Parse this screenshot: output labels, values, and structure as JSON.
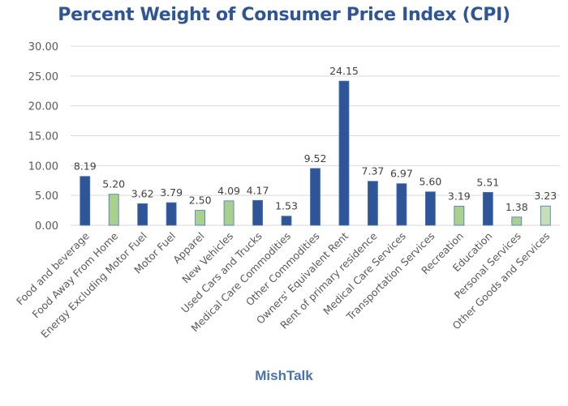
{
  "footer": "MishTalk",
  "chart_data": {
    "type": "bar",
    "title": "Percent Weight of Consumer Price Index (CPI)",
    "xlabel": "",
    "ylabel": "",
    "ylim": [
      0,
      30
    ],
    "yticks": [
      "0.00",
      "5.00",
      "10.00",
      "15.00",
      "20.00",
      "25.00",
      "30.00"
    ],
    "ytick_values": [
      0,
      5,
      10,
      15,
      20,
      25,
      30
    ],
    "grid": true,
    "legend": "none",
    "categories": [
      "Food and beverage",
      "Food Away From Home",
      "Energy Excluding Motor Fuel",
      "Motor Fuel",
      "Apparel",
      "New Vehicles",
      "Used Cars and Trucks",
      "Medical Care Commodities",
      "Other Commodities",
      "Owners' Equivalent Rent",
      "Rent of primary residence",
      "Medical Care Services",
      "Transportation Services",
      "Recreation",
      "Education",
      "Personal Services",
      "Other Goods and Services"
    ],
    "values": [
      8.19,
      5.2,
      3.62,
      3.79,
      2.5,
      4.09,
      4.17,
      1.53,
      9.52,
      24.15,
      7.37,
      6.97,
      5.6,
      3.19,
      5.51,
      1.38,
      3.23
    ],
    "data_labels": [
      "8.19",
      "5.20",
      "3.62",
      "3.79",
      "2.50",
      "4.09",
      "4.17",
      "1.53",
      "9.52",
      "24.15",
      "7.37",
      "6.97",
      "5.60",
      "3.19",
      "5.51",
      "1.38",
      "3.23"
    ],
    "bar_colors": [
      "#2F5597",
      "#A9D18E",
      "#2F5597",
      "#2F5597",
      "#A9D18E",
      "#A9D18E",
      "#2F5597",
      "#2F5597",
      "#2F5597",
      "#2F5597",
      "#2F5597",
      "#2F5597",
      "#2F5597",
      "#A9D18E",
      "#2F5597",
      "#A9D18E",
      "#C5E0B4"
    ],
    "bar_outline_color": "#4472C4",
    "grid_color": "#D9D9D9"
  }
}
